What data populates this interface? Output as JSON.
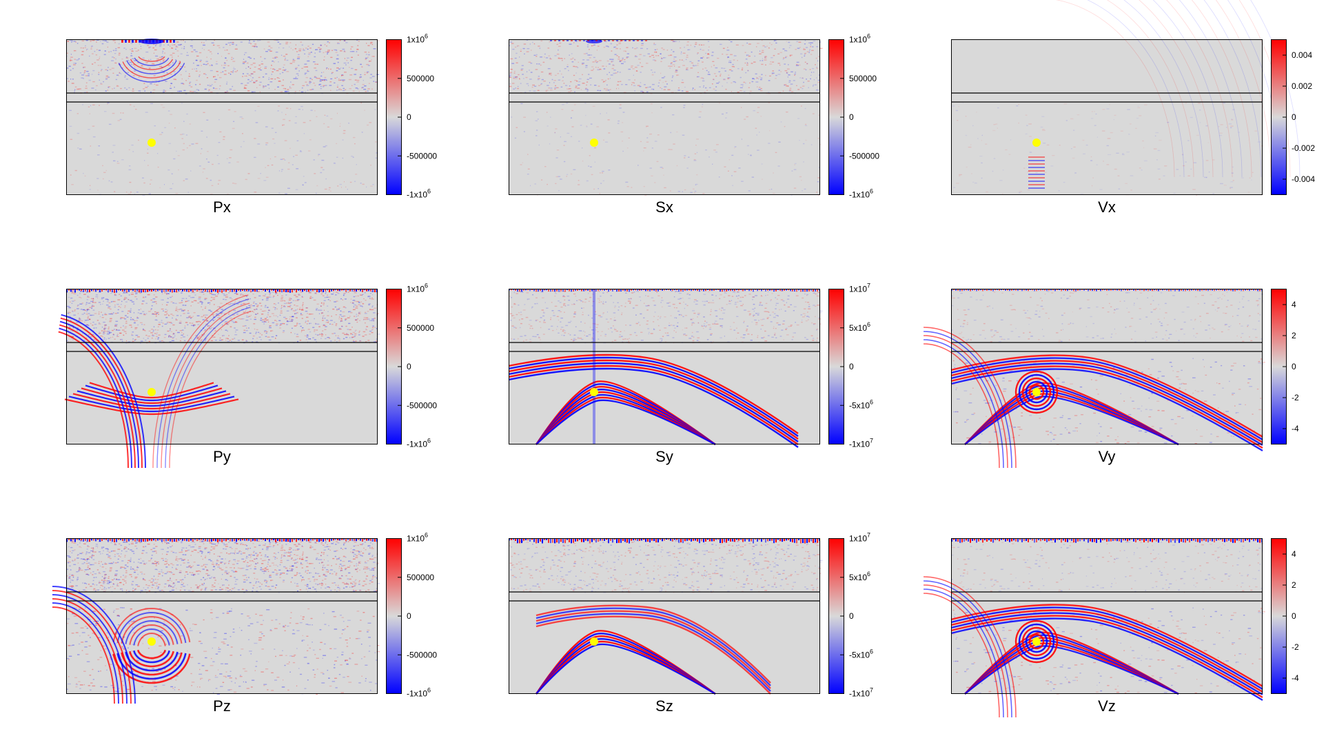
{
  "colors": {
    "positive": "#ff0000",
    "negative": "#0000ff",
    "zero": "#d9d9d9",
    "source": "#ffff00",
    "frame": "#000000"
  },
  "chart_data": [
    {
      "type": "heatmap",
      "title": "Px",
      "kind": "p_weak",
      "colorbar": {
        "range": [
          -1000000,
          1000000
        ],
        "ticks": [
          {
            "value": 1000000,
            "label": "1x10",
            "exp": "6"
          },
          {
            "value": 500000,
            "label": "500000",
            "exp": ""
          },
          {
            "value": 0,
            "label": "0",
            "exp": ""
          },
          {
            "value": -500000,
            "label": "-500000",
            "exp": ""
          },
          {
            "value": -1000000,
            "label": "-1x10",
            "exp": "6"
          }
        ]
      }
    },
    {
      "type": "heatmap",
      "title": "Sx",
      "kind": "s_weak",
      "colorbar": {
        "range": [
          -1000000,
          1000000
        ],
        "ticks": [
          {
            "value": 1000000,
            "label": "1x10",
            "exp": "6"
          },
          {
            "value": 500000,
            "label": "500000",
            "exp": ""
          },
          {
            "value": 0,
            "label": "0",
            "exp": ""
          },
          {
            "value": -500000,
            "label": "-500000",
            "exp": ""
          },
          {
            "value": -1000000,
            "label": "-1x10",
            "exp": "6"
          }
        ]
      }
    },
    {
      "type": "heatmap",
      "title": "Vx",
      "kind": "v_weak",
      "colorbar": {
        "range": [
          -0.005,
          0.005
        ],
        "ticks": [
          {
            "value": 0.004,
            "label": "0.004",
            "exp": ""
          },
          {
            "value": 0.002,
            "label": "0.002",
            "exp": ""
          },
          {
            "value": 0,
            "label": "0",
            "exp": ""
          },
          {
            "value": -0.002,
            "label": "-0.002",
            "exp": ""
          },
          {
            "value": -0.004,
            "label": "-0.004",
            "exp": ""
          }
        ]
      }
    },
    {
      "type": "heatmap",
      "title": "Py",
      "kind": "p_strong",
      "colorbar": {
        "range": [
          -1000000,
          1000000
        ],
        "ticks": [
          {
            "value": 1000000,
            "label": "1x10",
            "exp": "6"
          },
          {
            "value": 500000,
            "label": "500000",
            "exp": ""
          },
          {
            "value": 0,
            "label": "0",
            "exp": ""
          },
          {
            "value": -500000,
            "label": "-500000",
            "exp": ""
          },
          {
            "value": -1000000,
            "label": "-1x10",
            "exp": "6"
          }
        ]
      }
    },
    {
      "type": "heatmap",
      "title": "Sy",
      "kind": "s_strong",
      "colorbar": {
        "range": [
          -10000000,
          10000000
        ],
        "ticks": [
          {
            "value": 10000000,
            "label": "1x10",
            "exp": "7"
          },
          {
            "value": 5000000,
            "label": "5x10",
            "exp": "6"
          },
          {
            "value": 0,
            "label": "0",
            "exp": ""
          },
          {
            "value": -5000000,
            "label": "-5x10",
            "exp": "6"
          },
          {
            "value": -10000000,
            "label": "-1x10",
            "exp": "7"
          }
        ]
      }
    },
    {
      "type": "heatmap",
      "title": "Vy",
      "kind": "v_strong",
      "colorbar": {
        "range": [
          -5,
          5
        ],
        "ticks": [
          {
            "value": 4,
            "label": "4",
            "exp": ""
          },
          {
            "value": 2,
            "label": "2",
            "exp": ""
          },
          {
            "value": 0,
            "label": "0",
            "exp": ""
          },
          {
            "value": -2,
            "label": "-2",
            "exp": ""
          },
          {
            "value": -4,
            "label": "-4",
            "exp": ""
          }
        ]
      }
    },
    {
      "type": "heatmap",
      "title": "Pz",
      "kind": "p_strong2",
      "colorbar": {
        "range": [
          -1000000,
          1000000
        ],
        "ticks": [
          {
            "value": 1000000,
            "label": "1x10",
            "exp": "6"
          },
          {
            "value": 500000,
            "label": "500000",
            "exp": ""
          },
          {
            "value": 0,
            "label": "0",
            "exp": ""
          },
          {
            "value": -500000,
            "label": "-500000",
            "exp": ""
          },
          {
            "value": -1000000,
            "label": "-1x10",
            "exp": "6"
          }
        ]
      }
    },
    {
      "type": "heatmap",
      "title": "Sz",
      "kind": "s_strong2",
      "colorbar": {
        "range": [
          -10000000,
          10000000
        ],
        "ticks": [
          {
            "value": 10000000,
            "label": "1x10",
            "exp": "7"
          },
          {
            "value": 5000000,
            "label": "5x10",
            "exp": "6"
          },
          {
            "value": 0,
            "label": "0",
            "exp": ""
          },
          {
            "value": -5000000,
            "label": "-5x10",
            "exp": "6"
          },
          {
            "value": -10000000,
            "label": "-1x10",
            "exp": "7"
          }
        ]
      }
    },
    {
      "type": "heatmap",
      "title": "Vz",
      "kind": "v_strong2",
      "colorbar": {
        "range": [
          -5,
          5
        ],
        "ticks": [
          {
            "value": 4,
            "label": "4",
            "exp": ""
          },
          {
            "value": 2,
            "label": "2",
            "exp": ""
          },
          {
            "value": 0,
            "label": "0",
            "exp": ""
          },
          {
            "value": -2,
            "label": "-2",
            "exp": ""
          },
          {
            "value": -4,
            "label": "-4",
            "exp": ""
          }
        ]
      }
    }
  ]
}
